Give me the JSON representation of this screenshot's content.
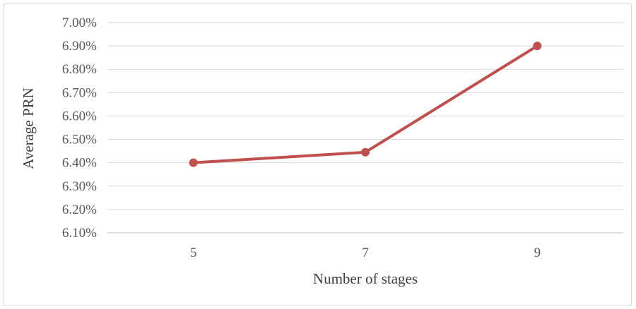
{
  "chart_data": {
    "type": "line",
    "title": "",
    "xlabel": "Number of stages",
    "ylabel": "Average PRN",
    "categories": [
      "5",
      "7",
      "9"
    ],
    "series": [
      {
        "values": [
          0.064,
          0.06445,
          0.069
        ],
        "color": "#c0504d"
      }
    ],
    "ylim": [
      0.061,
      0.07
    ],
    "y_ticks": [
      0.061,
      0.062,
      0.063,
      0.064,
      0.065,
      0.066,
      0.067,
      0.068,
      0.069,
      0.07
    ],
    "y_tick_labels": [
      "6.10%",
      "6.20%",
      "6.30%",
      "6.40%",
      "6.50%",
      "6.60%",
      "6.70%",
      "6.80%",
      "6.90%",
      "7.00%"
    ],
    "grid": true,
    "legend": "none"
  }
}
